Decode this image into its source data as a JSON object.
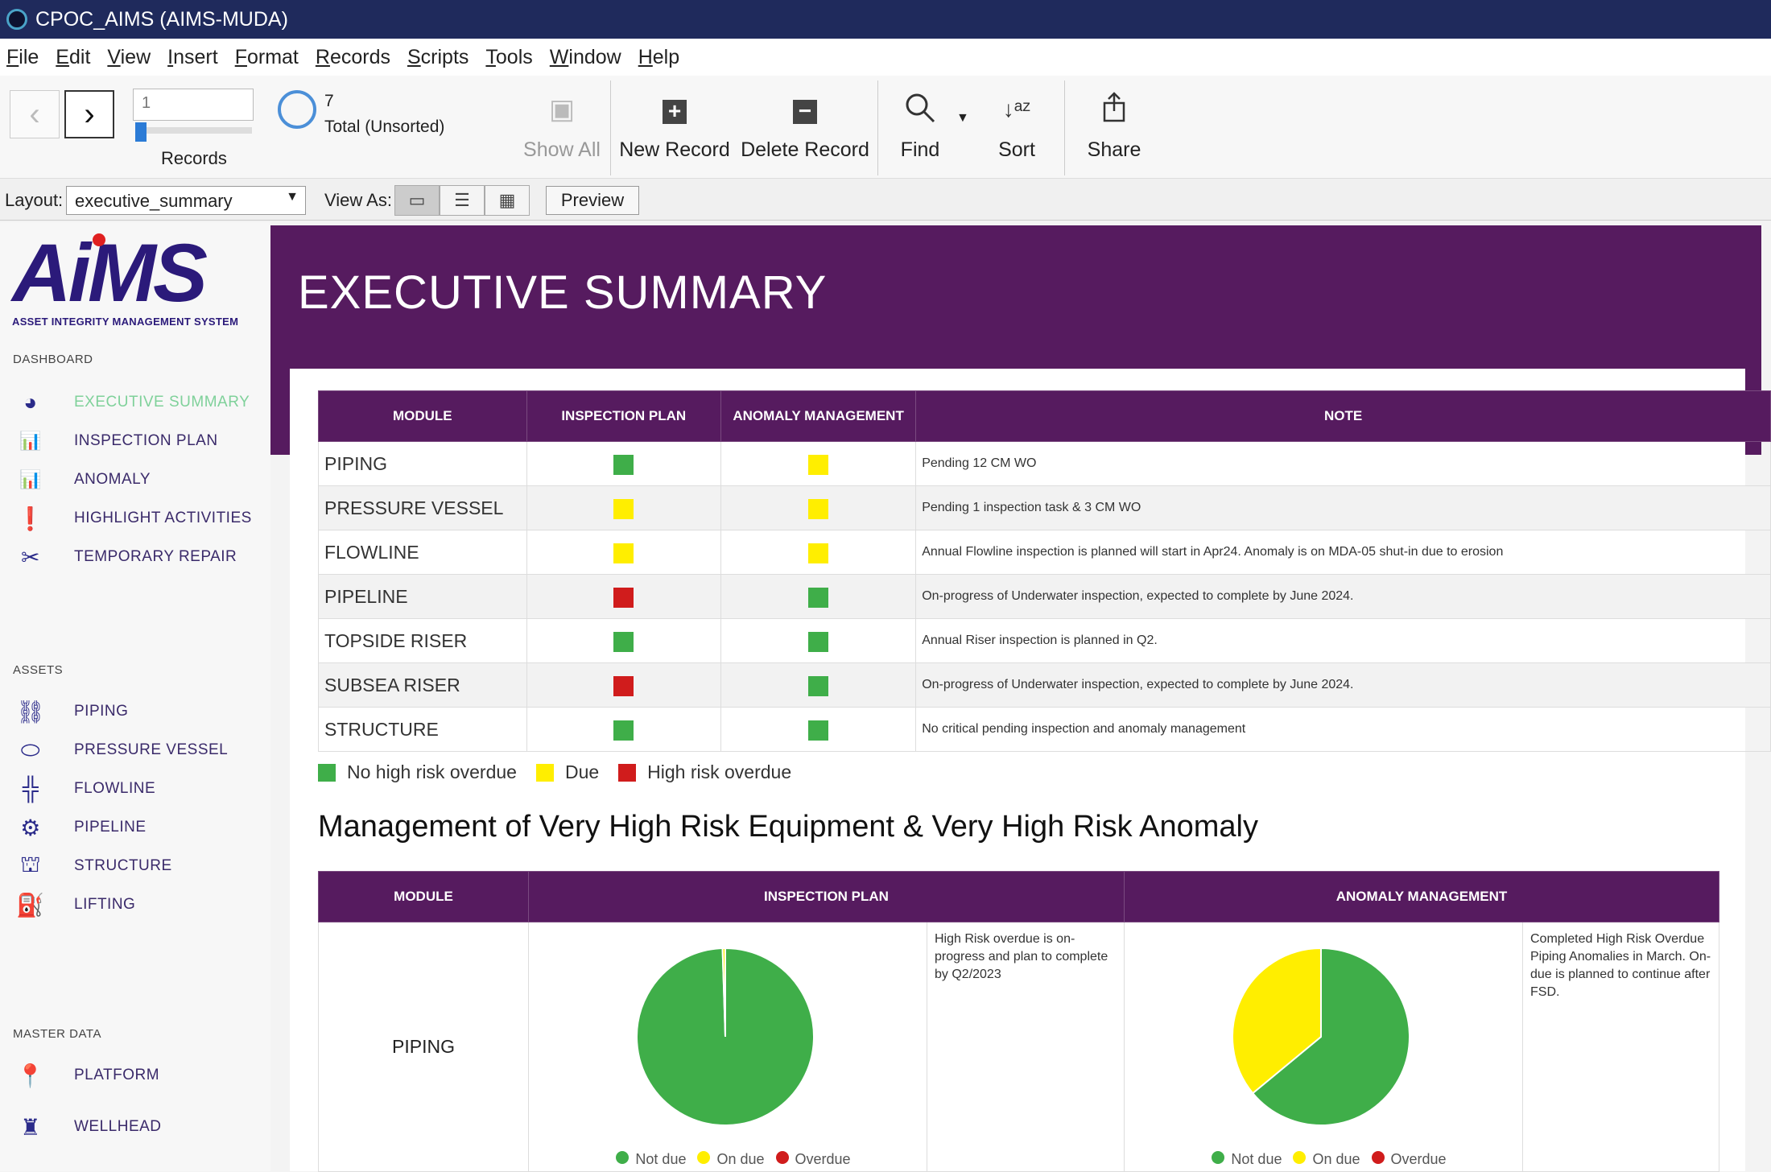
{
  "window": {
    "title": "CPOC_AIMS (AIMS-MUDA)"
  },
  "menu": [
    "File",
    "Edit",
    "View",
    "Insert",
    "Format",
    "Records",
    "Scripts",
    "Tools",
    "Window",
    "Help"
  ],
  "toolbar": {
    "record_value": "1",
    "records_label": "Records",
    "total_count": "7",
    "total_label": "Total (Unsorted)",
    "show_all": "Show All",
    "new_record": "New Record",
    "delete_record": "Delete Record",
    "find": "Find",
    "sort": "Sort",
    "share": "Share"
  },
  "layoutbar": {
    "layout_label": "Layout:",
    "layout_value": "executive_summary",
    "view_as_label": "View As:",
    "preview": "Preview"
  },
  "sidebar": {
    "logo_text": "AiMS",
    "logo_sub": "ASSET INTEGRITY MANAGEMENT SYSTEM",
    "sections": {
      "dashboard": "DASHBOARD",
      "assets": "ASSETS",
      "master": "MASTER DATA"
    },
    "dashboard_items": [
      "EXECUTIVE SUMMARY",
      "INSPECTION PLAN",
      "ANOMALY",
      "HIGHLIGHT ACTIVITIES",
      "TEMPORARY REPAIR"
    ],
    "asset_items": [
      "PIPING",
      "PRESSURE VESSEL",
      "FLOWLINE",
      "PIPELINE",
      "STRUCTURE",
      "LIFTING"
    ],
    "master_items": [
      "PLATFORM",
      "WELLHEAD"
    ]
  },
  "main": {
    "title": "EXECUTIVE SUMMARY",
    "status_table": {
      "headers": [
        "MODULE",
        "INSPECTION PLAN",
        "ANOMALY MANAGEMENT",
        "NOTE"
      ],
      "rows": [
        {
          "module": "PIPING",
          "inspection": "green",
          "anomaly": "yellow",
          "note": "Pending 12 CM WO"
        },
        {
          "module": "PRESSURE VESSEL",
          "inspection": "yellow",
          "anomaly": "yellow",
          "note": "Pending 1 inspection task & 3 CM WO"
        },
        {
          "module": "FLOWLINE",
          "inspection": "yellow",
          "anomaly": "yellow",
          "note": "Annual Flowline inspection is planned will start in Apr24. Anomaly is on MDA-05 shut-in due to erosion"
        },
        {
          "module": "PIPELINE",
          "inspection": "red",
          "anomaly": "green",
          "note": "On-progress of Underwater inspection, expected to complete by June 2024."
        },
        {
          "module": "TOPSIDE RISER",
          "inspection": "green",
          "anomaly": "green",
          "note": "Annual Riser inspection is planned in Q2."
        },
        {
          "module": "SUBSEA RISER",
          "inspection": "red",
          "anomaly": "green",
          "note": "On-progress of Underwater inspection, expected to complete by June 2024."
        },
        {
          "module": "STRUCTURE",
          "inspection": "green",
          "anomaly": "green",
          "note": "No critical pending inspection and anomaly management"
        }
      ]
    },
    "legend": [
      "No high risk overdue",
      "Due",
      "High risk overdue"
    ],
    "section_title": "Management of Very High Risk Equipment & Very High Risk Anomaly",
    "risk_table": {
      "headers": [
        "MODULE",
        "INSPECTION PLAN",
        "ANOMALY MANAGEMENT"
      ],
      "module": "PIPING",
      "inspection_note": "High Risk overdue is on-progress and plan to complete by Q2/2023",
      "anomaly_note": "Completed High Risk Overdue Piping Anomalies in March. On-due is planned to continue after FSD.",
      "pie_legend": [
        "Not due",
        "On due",
        "Overdue"
      ]
    }
  },
  "colors": {
    "green": "#3fae49",
    "yellow": "#ffee00",
    "red": "#d01c1c",
    "purple": "#561b5f",
    "title_bar": "#1f2a5c"
  },
  "chart_data": [
    {
      "type": "pie",
      "title": "",
      "categories": [
        "Not due",
        "On due",
        "Overdue"
      ],
      "values": [
        99.5,
        0.5,
        0
      ]
    },
    {
      "type": "pie",
      "title": "",
      "categories": [
        "Not due",
        "On due",
        "Overdue"
      ],
      "values": [
        64,
        36,
        0
      ]
    }
  ]
}
